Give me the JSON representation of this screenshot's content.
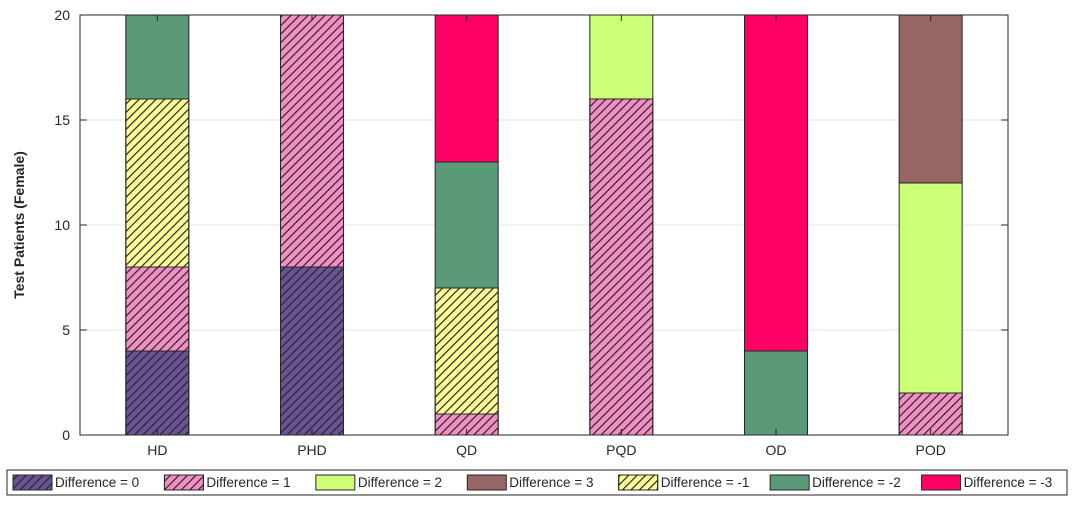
{
  "chart_data": {
    "type": "bar",
    "stacked": true,
    "categories": [
      "HD",
      "PHD",
      "QD",
      "PQD",
      "OD",
      "POD"
    ],
    "ylabel": "Test Patients (Female)",
    "xlabel": "",
    "ylim": [
      0,
      20
    ],
    "yticks": [
      0,
      5,
      10,
      15,
      20
    ],
    "grid": "horizontal",
    "legend_position": "bottom",
    "series": [
      {
        "name": "Difference = 0",
        "color": "#6A5294",
        "hatched": true,
        "values": [
          4,
          8,
          0,
          0,
          0,
          0
        ]
      },
      {
        "name": "Difference = 1",
        "color": "#F48FC6",
        "hatched": true,
        "values": [
          4,
          12,
          1,
          16,
          0,
          2
        ]
      },
      {
        "name": "Difference = -1",
        "color": "#FFFF99",
        "hatched": true,
        "values": [
          8,
          0,
          6,
          0,
          0,
          0
        ]
      },
      {
        "name": "Difference = -2",
        "color": "#5A9A78",
        "hatched": false,
        "values": [
          4,
          0,
          6,
          0,
          4,
          0
        ]
      },
      {
        "name": "Difference = -3",
        "color": "#FF0066",
        "hatched": false,
        "values": [
          0,
          0,
          7,
          0,
          16,
          0
        ]
      },
      {
        "name": "Difference = 2",
        "color": "#CCFF77",
        "hatched": false,
        "values": [
          0,
          0,
          0,
          4,
          0,
          10
        ]
      },
      {
        "name": "Difference = 3",
        "color": "#966664",
        "hatched": false,
        "values": [
          0,
          0,
          0,
          0,
          0,
          8
        ]
      }
    ],
    "legend": [
      {
        "name": "Difference = 0",
        "color": "#6A5294",
        "hatched": true
      },
      {
        "name": "Difference = 1",
        "color": "#F48FC6",
        "hatched": true
      },
      {
        "name": "Difference = 2",
        "color": "#CCFF77",
        "hatched": false
      },
      {
        "name": "Difference = 3",
        "color": "#966664",
        "hatched": false
      },
      {
        "name": "Difference = -1",
        "color": "#FFFF99",
        "hatched": true
      },
      {
        "name": "Difference = -2",
        "color": "#5A9A78",
        "hatched": false
      },
      {
        "name": "Difference = -3",
        "color": "#FF0066",
        "hatched": false
      }
    ]
  }
}
